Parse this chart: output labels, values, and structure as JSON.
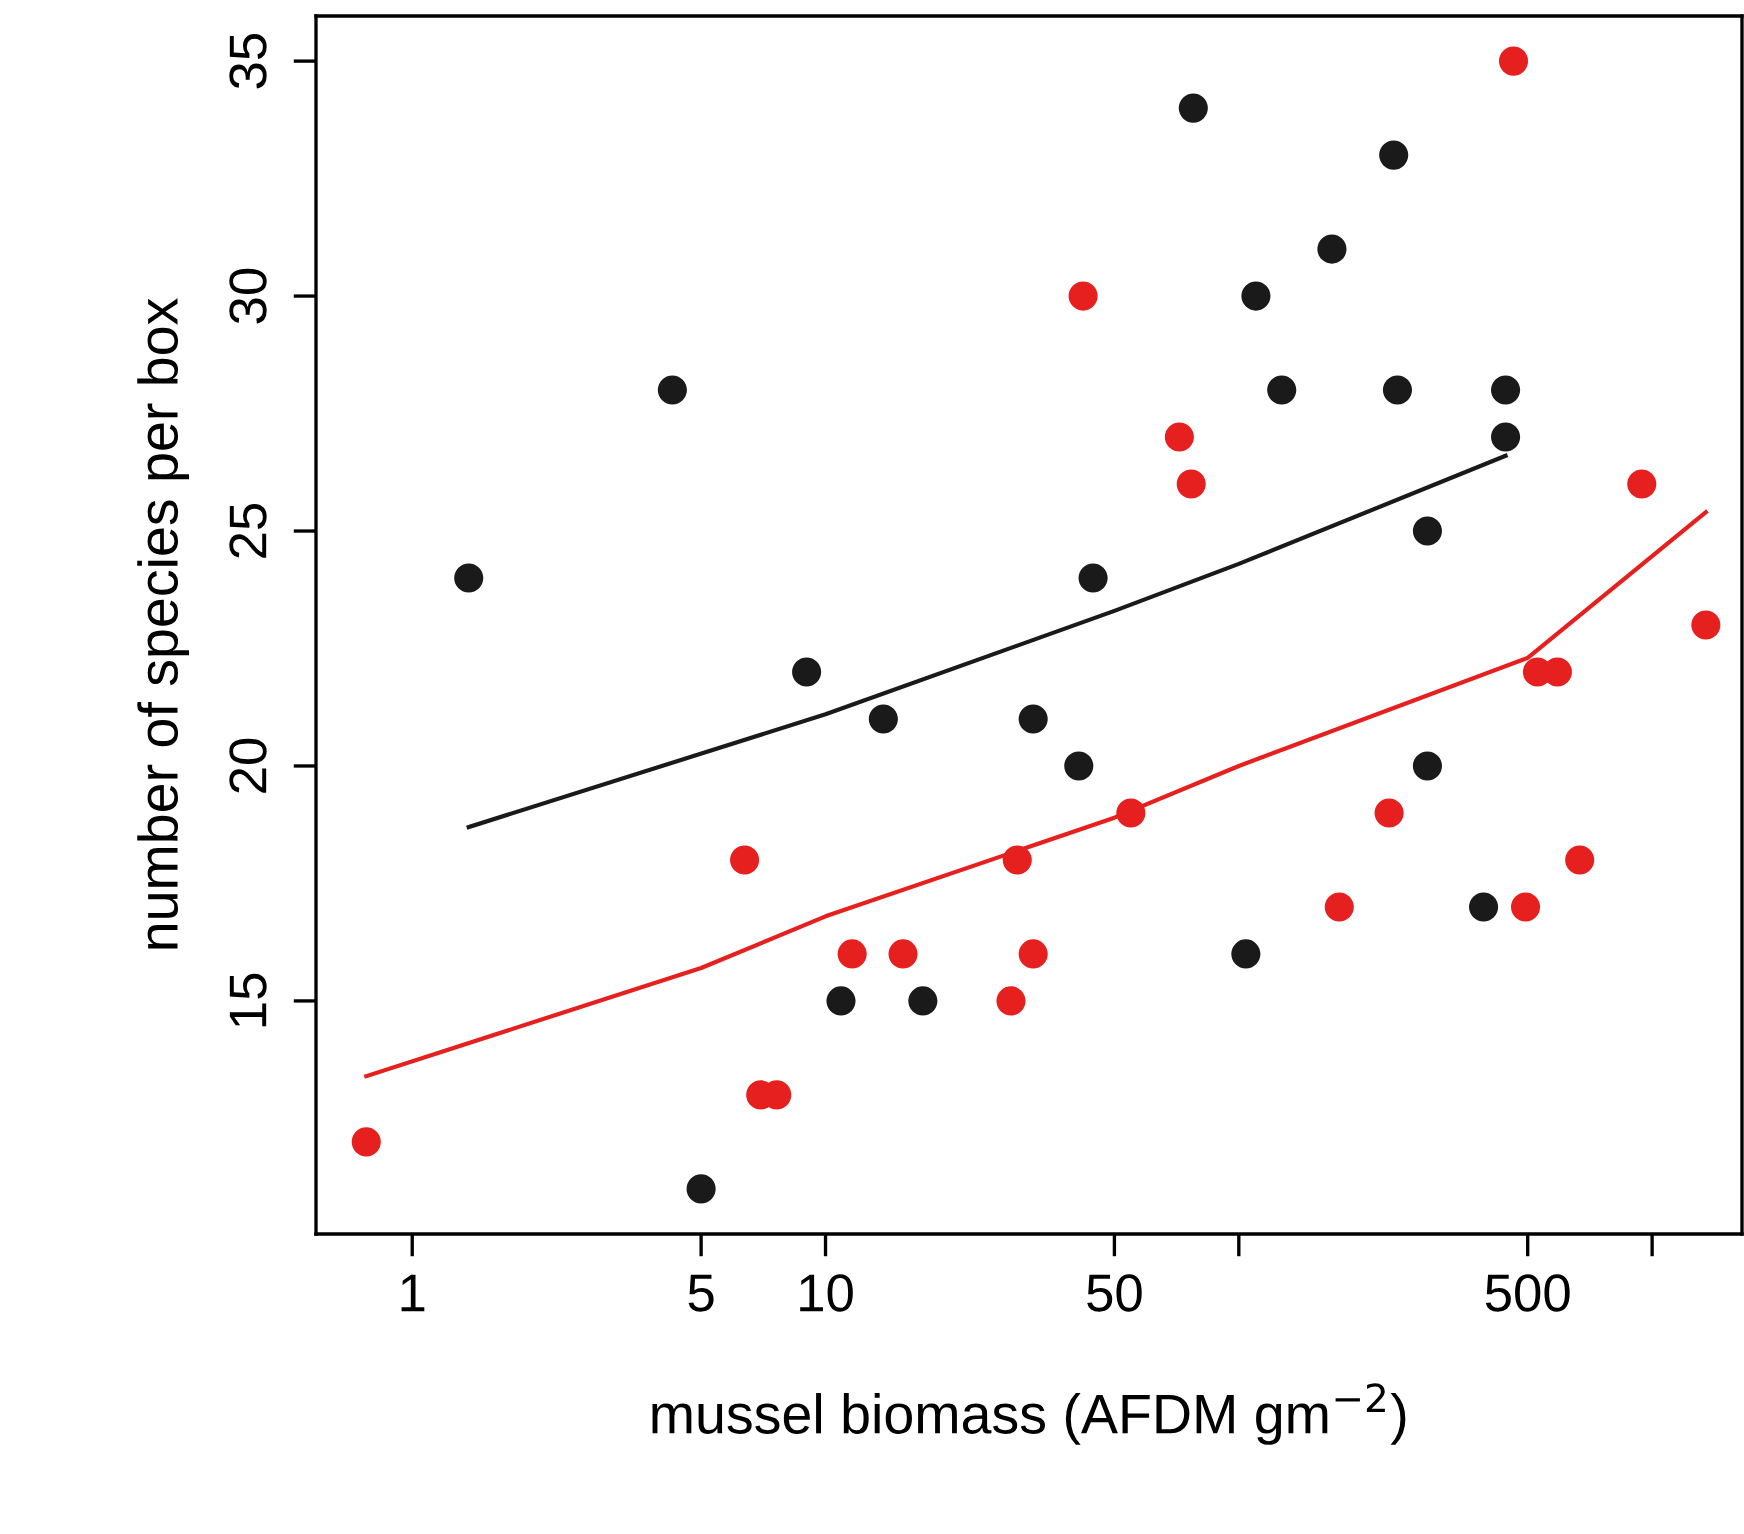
{
  "chart_data": {
    "type": "scatter",
    "xlabel": "mussel biomass (AFDM gm$^{−2}$)",
    "ylabel": "number of species per box",
    "log": "x",
    "grid": false,
    "legend": false,
    "marker": "circle",
    "xlim": [
      0.585,
      1650
    ],
    "ylim": [
      10.04,
      35.96
    ],
    "xticks": [
      1,
      5,
      10,
      50,
      {
        "value": 100,
        "label": null
      },
      500,
      {
        "value": 1000,
        "label": null
      }
    ],
    "yticks": [
      15,
      20,
      25,
      30,
      35
    ],
    "series": [
      {
        "color": "#1a1a1a",
        "x": [
          1.37,
          4.26,
          5,
          9.0,
          10.9,
          13.8,
          17.2,
          31.8,
          41,
          44.4,
          77.6,
          104,
          110,
          127,
          168,
          237,
          242,
          286,
          286,
          391,
          442,
          442
        ],
        "values": [
          24,
          28,
          11,
          22,
          15,
          21,
          15,
          21,
          20,
          24,
          34,
          16,
          30,
          28,
          31,
          33,
          28,
          25,
          20,
          17,
          28,
          27
        ]
      },
      {
        "color": "#e6201e",
        "x": [
          0.774,
          6.37,
          6.97,
          7.62,
          11.6,
          15.4,
          28.1,
          29.1,
          31.8,
          42,
          54.8,
          71.8,
          76.7,
          175,
          231,
          462,
          494,
          528,
          590,
          668,
          944,
          1349
        ],
        "values": [
          12,
          18,
          13,
          13,
          16,
          16,
          15,
          18,
          16,
          30,
          19,
          27,
          26,
          17,
          19,
          35,
          17,
          22,
          22,
          18,
          26,
          23
        ]
      },
      {
        "type": "line",
        "color": "#1a1a1a",
        "marker": "none",
        "line_style": "solid",
        "x": [
          1.37,
          10,
          50,
          100,
          442
        ],
        "values": [
          18.7,
          21.1,
          23.3,
          24.3,
          26.6
        ]
      },
      {
        "type": "line",
        "color": "#e6201e",
        "marker": "none",
        "line_style": "solid",
        "x": [
          0.774,
          5,
          10,
          50,
          100,
          500,
          1349
        ],
        "values": [
          13.4,
          15.7,
          16.8,
          18.9,
          20.0,
          22.3,
          25.4
        ]
      }
    ]
  }
}
